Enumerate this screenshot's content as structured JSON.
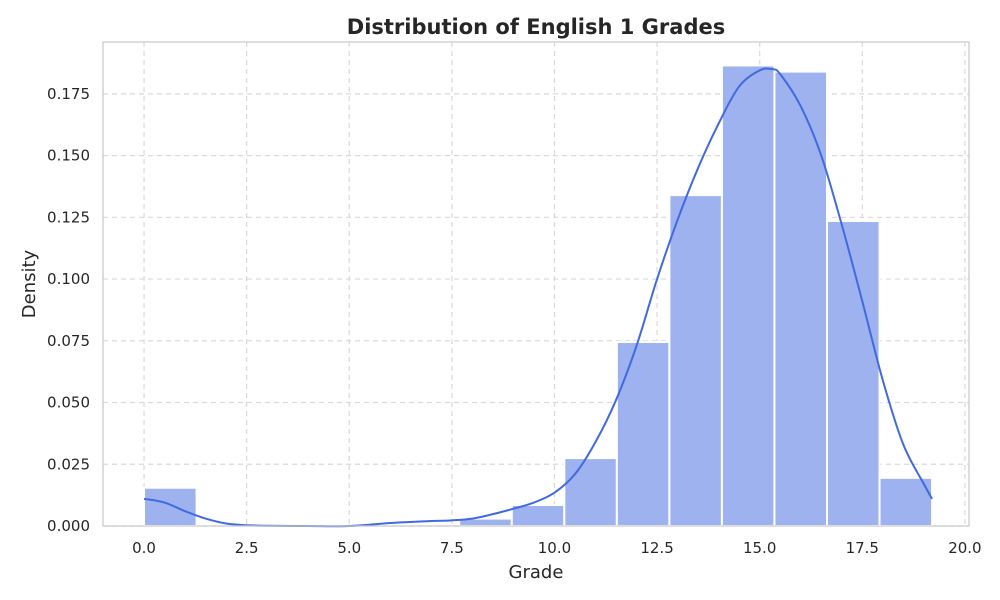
{
  "chart_data": {
    "type": "bar",
    "subtype": "histogram-with-kde",
    "title": "Distribution of English 1 Grades",
    "xlabel": "Grade",
    "ylabel": "Density",
    "xlim": [
      -1,
      20.1
    ],
    "ylim": [
      0,
      0.196
    ],
    "xticks": [
      0.0,
      2.5,
      5.0,
      7.5,
      10.0,
      12.5,
      15.0,
      17.5,
      20.0
    ],
    "xtick_labels": [
      "0.0",
      "2.5",
      "5.0",
      "7.5",
      "10.0",
      "12.5",
      "15.0",
      "17.5",
      "20.0"
    ],
    "yticks": [
      0.0,
      0.025,
      0.05,
      0.075,
      0.1,
      0.125,
      0.15,
      0.175
    ],
    "ytick_labels": [
      "0.000",
      "0.025",
      "0.050",
      "0.075",
      "0.100",
      "0.125",
      "0.150",
      "0.175"
    ],
    "grid": true,
    "bins": [
      {
        "x0": 0.0,
        "x1": 1.28,
        "density": 0.0155
      },
      {
        "x0": 1.28,
        "x1": 2.56,
        "density": 0.0
      },
      {
        "x0": 2.56,
        "x1": 3.84,
        "density": 0.0
      },
      {
        "x0": 3.84,
        "x1": 5.12,
        "density": 0.0
      },
      {
        "x0": 5.12,
        "x1": 6.4,
        "density": 0.0
      },
      {
        "x0": 6.4,
        "x1": 7.68,
        "density": 0.0
      },
      {
        "x0": 7.68,
        "x1": 8.96,
        "density": 0.003
      },
      {
        "x0": 8.96,
        "x1": 10.24,
        "density": 0.0085
      },
      {
        "x0": 10.24,
        "x1": 11.52,
        "density": 0.0275
      },
      {
        "x0": 11.52,
        "x1": 12.8,
        "density": 0.0745
      },
      {
        "x0": 12.8,
        "x1": 14.08,
        "density": 0.134
      },
      {
        "x0": 14.08,
        "x1": 15.36,
        "density": 0.1865
      },
      {
        "x0": 15.36,
        "x1": 16.64,
        "density": 0.184
      },
      {
        "x0": 16.64,
        "x1": 17.92,
        "density": 0.1235
      },
      {
        "x0": 17.92,
        "x1": 19.2,
        "density": 0.0195
      }
    ],
    "kde": {
      "x": [
        0.0,
        0.5,
        1.0,
        1.5,
        2.0,
        2.5,
        3.0,
        4.0,
        5.0,
        6.0,
        7.0,
        7.5,
        8.0,
        8.5,
        9.0,
        9.5,
        10.0,
        10.5,
        11.0,
        11.5,
        12.0,
        12.5,
        13.0,
        13.5,
        14.0,
        14.5,
        15.0,
        15.3,
        15.5,
        16.0,
        16.5,
        17.0,
        17.5,
        18.0,
        18.5,
        19.0,
        19.2
      ],
      "y": [
        0.011,
        0.0095,
        0.006,
        0.003,
        0.001,
        0.0003,
        0.0001,
        0.0,
        0.0,
        0.0012,
        0.002,
        0.0023,
        0.003,
        0.0048,
        0.007,
        0.0095,
        0.0135,
        0.021,
        0.034,
        0.051,
        0.073,
        0.1,
        0.124,
        0.145,
        0.163,
        0.178,
        0.1845,
        0.185,
        0.183,
        0.17,
        0.15,
        0.122,
        0.091,
        0.059,
        0.033,
        0.017,
        0.011
      ]
    },
    "colors": {
      "bar": "#9db2ef",
      "kde": "#4169e1"
    }
  }
}
